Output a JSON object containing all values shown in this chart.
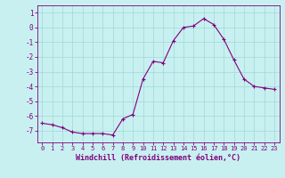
{
  "hours": [
    0,
    1,
    2,
    3,
    4,
    5,
    6,
    7,
    8,
    9,
    10,
    11,
    12,
    13,
    14,
    15,
    16,
    17,
    18,
    19,
    20,
    21,
    22,
    23
  ],
  "windchill": [
    -6.5,
    -6.6,
    -6.8,
    -7.1,
    -7.2,
    -7.2,
    -7.2,
    -7.3,
    -6.2,
    -5.9,
    -3.5,
    -2.3,
    -2.4,
    -0.9,
    0.0,
    0.1,
    0.6,
    0.2,
    -0.8,
    -2.2,
    -3.5,
    -4.0,
    -4.1,
    -4.2
  ],
  "ylim": [
    -7.8,
    1.5
  ],
  "yticks": [
    1,
    0,
    -1,
    -2,
    -3,
    -4,
    -5,
    -6,
    -7
  ],
  "xticks": [
    0,
    1,
    2,
    3,
    4,
    5,
    6,
    7,
    8,
    9,
    10,
    11,
    12,
    13,
    14,
    15,
    16,
    17,
    18,
    19,
    20,
    21,
    22,
    23
  ],
  "line_color": "#7f007f",
  "marker": "+",
  "bg_color": "#c8f0f0",
  "grid_color": "#a0d8d8",
  "xlabel": "Windchill (Refroidissement éolien,°C)",
  "xlabel_color": "#7f007f",
  "tick_label_color": "#7f007f",
  "spine_color": "#7f007f"
}
